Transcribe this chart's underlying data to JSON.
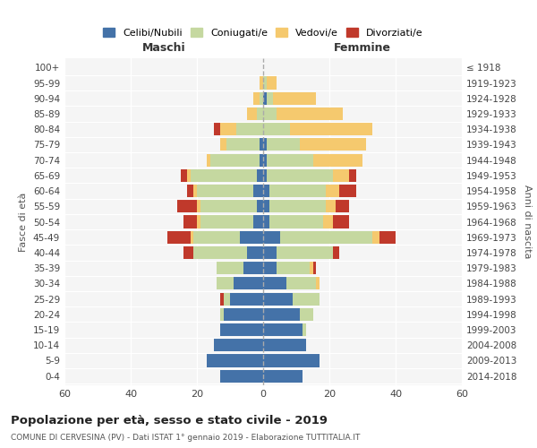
{
  "age_groups": [
    "0-4",
    "5-9",
    "10-14",
    "15-19",
    "20-24",
    "25-29",
    "30-34",
    "35-39",
    "40-44",
    "45-49",
    "50-54",
    "55-59",
    "60-64",
    "65-69",
    "70-74",
    "75-79",
    "80-84",
    "85-89",
    "90-94",
    "95-99",
    "100+"
  ],
  "birth_years": [
    "2014-2018",
    "2009-2013",
    "2004-2008",
    "1999-2003",
    "1994-1998",
    "1989-1993",
    "1984-1988",
    "1979-1983",
    "1974-1978",
    "1969-1973",
    "1964-1968",
    "1959-1963",
    "1954-1958",
    "1949-1953",
    "1944-1948",
    "1939-1943",
    "1934-1938",
    "1929-1933",
    "1924-1928",
    "1919-1923",
    "≤ 1918"
  ],
  "males": {
    "celibi": [
      13,
      17,
      15,
      13,
      12,
      10,
      9,
      6,
      5,
      7,
      3,
      2,
      3,
      2,
      1,
      1,
      0,
      0,
      0,
      0,
      0
    ],
    "coniugati": [
      0,
      0,
      0,
      0,
      1,
      2,
      5,
      8,
      16,
      14,
      16,
      17,
      17,
      20,
      15,
      10,
      8,
      2,
      1,
      0,
      0
    ],
    "vedovi": [
      0,
      0,
      0,
      0,
      0,
      0,
      0,
      0,
      0,
      1,
      1,
      1,
      1,
      1,
      1,
      2,
      5,
      3,
      2,
      1,
      0
    ],
    "divorziati": [
      0,
      0,
      0,
      0,
      0,
      1,
      0,
      0,
      3,
      7,
      4,
      6,
      2,
      2,
      0,
      0,
      2,
      0,
      0,
      0,
      0
    ]
  },
  "females": {
    "nubili": [
      12,
      17,
      13,
      12,
      11,
      9,
      7,
      4,
      4,
      5,
      2,
      2,
      2,
      1,
      1,
      1,
      0,
      0,
      1,
      0,
      0
    ],
    "coniugate": [
      0,
      0,
      0,
      1,
      4,
      8,
      9,
      10,
      17,
      28,
      16,
      17,
      17,
      20,
      14,
      10,
      8,
      4,
      2,
      1,
      0
    ],
    "vedove": [
      0,
      0,
      0,
      0,
      0,
      0,
      1,
      1,
      0,
      2,
      3,
      3,
      4,
      5,
      15,
      20,
      25,
      20,
      13,
      3,
      0
    ],
    "divorziate": [
      0,
      0,
      0,
      0,
      0,
      0,
      0,
      1,
      2,
      5,
      5,
      4,
      5,
      2,
      0,
      0,
      0,
      0,
      0,
      0,
      0
    ]
  },
  "colors": {
    "celibi": "#4472a8",
    "coniugati": "#c5d8a0",
    "vedovi": "#f5c96e",
    "divorziati": "#c0392b"
  },
  "xlim": 60,
  "title": "Popolazione per età, sesso e stato civile - 2019",
  "subtitle": "COMUNE DI CERVESINA (PV) - Dati ISTAT 1° gennaio 2019 - Elaborazione TUTTITALIA.IT",
  "legend_labels": [
    "Celibi/Nubili",
    "Coniugati/e",
    "Vedovi/e",
    "Divorziati/e"
  ],
  "xlabel_left": "Maschi",
  "xlabel_right": "Femmine",
  "ylabel_left": "Fasce di età",
  "ylabel_right": "Anni di nascita",
  "bg_color": "#f5f5f5",
  "grid_color": "#ffffff"
}
